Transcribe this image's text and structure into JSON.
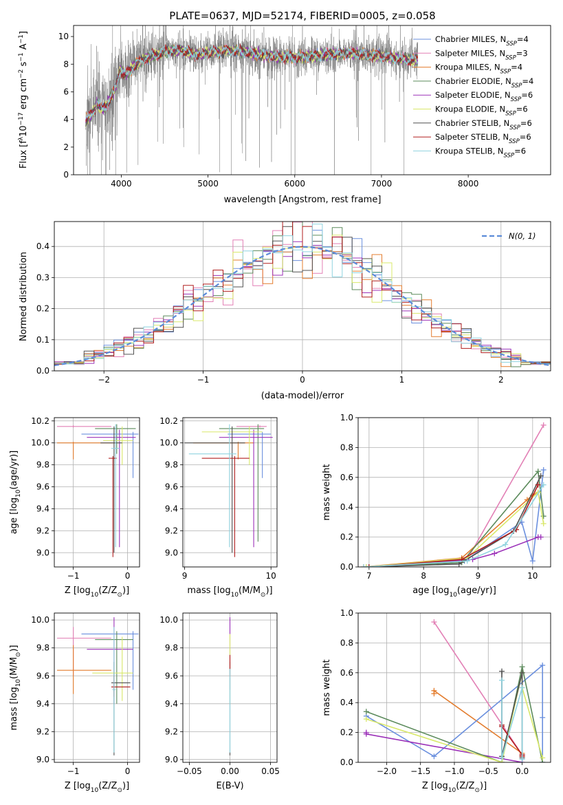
{
  "figure_title": "PLATE=0637, MJD=52174, FIBERID=0005, z=0.058",
  "colors": {
    "chabrier_miles": "#6a8fde",
    "salpeter_miles": "#e27fb5",
    "kroupa_miles": "#e37c2d",
    "chabrier_elodie": "#5b8a5b",
    "salpeter_elodie": "#9b30b8",
    "kroupa_elodie": "#d9e86a",
    "chabrier_stelib": "#505050",
    "salpeter_stelib": "#b01e1e",
    "kroupa_stelib": "#8fd3df",
    "data": "#808080",
    "normal": "#5b8bd9",
    "grid": "#b0b0b0"
  },
  "chart_data": [
    {
      "id": "spectrum",
      "type": "line",
      "title": "PLATE=0637, MJD=52174, FIBERID=0005, z=0.058",
      "xlabel": "wavelength [Angstrom, rest frame]",
      "ylabel_parts": [
        "Flux [f",
        "λ",
        "10",
        "−17",
        " erg cm",
        "−2",
        " s",
        "−1",
        " A",
        "−1",
        "]"
      ],
      "xlim": [
        3450,
        8950
      ],
      "ylim": [
        0,
        10.8
      ],
      "xticks": [
        4000,
        5000,
        6000,
        7000,
        8000
      ],
      "yticks": [
        0,
        2,
        4,
        6,
        8,
        10
      ],
      "grid": false,
      "legend_placement": "upper right",
      "legend": [
        {
          "label": "Chabrier MILES, N",
          "sub": "SSP",
          "tail": "=4",
          "color": "#6a8fde"
        },
        {
          "label": "Salpeter MILES, N",
          "sub": "SSP",
          "tail": "=3",
          "color": "#e27fb5"
        },
        {
          "label": "Kroupa MILES, N",
          "sub": "SSP",
          "tail": "=4",
          "color": "#e37c2d"
        },
        {
          "label": "Chabrier ELODIE, N",
          "sub": "SSP",
          "tail": "=4",
          "color": "#5b8a5b"
        },
        {
          "label": "Salpeter ELODIE, N",
          "sub": "SSP",
          "tail": "=6",
          "color": "#9b30b8"
        },
        {
          "label": "Kroupa ELODIE, N",
          "sub": "SSP",
          "tail": "=6",
          "color": "#d9e86a"
        },
        {
          "label": "Chabrier STELIB, N",
          "sub": "SSP",
          "tail": "=6",
          "color": "#505050"
        },
        {
          "label": "Salpeter STELIB, N",
          "sub": "SSP",
          "tail": "=6",
          "color": "#b01e1e"
        },
        {
          "label": "Kroupa STELIB, N",
          "sub": "SSP",
          "tail": "=6",
          "color": "#8fd3df"
        }
      ],
      "data_extent": [
        3590,
        7420
      ],
      "model_profile": {
        "x": [
          3590,
          3650,
          3700,
          3720,
          3780,
          3840,
          3880,
          3940,
          3980,
          4050,
          4150,
          4300,
          4500,
          4700,
          4850,
          5000,
          5200,
          5400,
          5600,
          5800,
          6000,
          6200,
          6400,
          6600,
          6800,
          7000,
          7200,
          7400
        ],
        "y": [
          3.9,
          4.3,
          4.8,
          5.2,
          4.7,
          5.1,
          5.6,
          6.4,
          7.6,
          7.2,
          7.9,
          8.5,
          8.9,
          9.0,
          8.7,
          8.8,
          9.0,
          8.9,
          8.7,
          8.5,
          8.5,
          8.6,
          8.7,
          8.8,
          8.7,
          8.6,
          8.4,
          8.3
        ]
      },
      "miles_range": [
        3590,
        7410
      ]
    },
    {
      "id": "residuals",
      "type": "line",
      "xlabel": "(data-model)/error",
      "ylabel": "Normed distribution",
      "xlim": [
        -2.5,
        2.5
      ],
      "ylim": [
        0,
        0.48
      ],
      "xticks": [
        -2,
        -1,
        0,
        1,
        2
      ],
      "xtick_labels": [
        "−2",
        "−1",
        "0",
        "1",
        "2"
      ],
      "yticks": [
        0.0,
        0.1,
        0.2,
        0.3,
        0.4
      ],
      "ytick_labels": [
        "0.0",
        "0.1",
        "0.2",
        "0.3",
        "0.4"
      ],
      "grid": true,
      "legend_placement": "upper right",
      "legend_label": "N(0, 1)",
      "bin_width": 0.1,
      "bin_start": -2.5
    },
    {
      "id": "age_vs_Z",
      "type": "scatter",
      "xlabel_parts": [
        "Z [log",
        "10",
        "(Z/Z",
        "⊙",
        ")]"
      ],
      "ylabel_parts": [
        "age  [log",
        "10",
        "(age/yr)]"
      ],
      "xlim": [
        -1.35,
        0.22
      ],
      "ylim": [
        8.87,
        10.23
      ],
      "xticks": [
        -1,
        0
      ],
      "xtick_labels": [
        "−1",
        "0"
      ],
      "yticks": [
        9.0,
        9.2,
        9.4,
        9.6,
        9.8,
        10.0,
        10.2
      ],
      "ytick_labels": [
        "9.0",
        "9.2",
        "9.4",
        "9.6",
        "9.8",
        "10.0",
        "10.2"
      ],
      "grid": true,
      "errorbars": [
        {
          "x": -1.0,
          "xlo": -1.3,
          "xhi": -0.3,
          "y": 10.15,
          "ylo": 10.14,
          "yhi": 10.16,
          "color": "#e27fb5"
        },
        {
          "x": -1.0,
          "xlo": -1.3,
          "xhi": -0.25,
          "y": 10.0,
          "ylo": 9.85,
          "yhi": 10.01,
          "color": "#e37c2d"
        },
        {
          "x": -0.2,
          "xlo": -0.6,
          "xhi": 0.15,
          "y": 10.13,
          "ylo": 9.9,
          "yhi": 10.17,
          "color": "#5b8a5b"
        },
        {
          "x": 0.1,
          "xlo": -0.85,
          "xhi": 0.2,
          "y": 10.08,
          "ylo": 9.68,
          "yhi": 10.1,
          "color": "#6a8fde"
        },
        {
          "x": -0.15,
          "xlo": -0.75,
          "xhi": 0.15,
          "y": 10.05,
          "ylo": 9.05,
          "yhi": 10.12,
          "color": "#9b30b8"
        },
        {
          "x": -0.1,
          "xlo": -0.45,
          "xhi": 0.1,
          "y": 10.02,
          "ylo": 9.8,
          "yhi": 10.15,
          "color": "#d9e86a"
        },
        {
          "x": -0.25,
          "xlo": -0.5,
          "xhi": -0.1,
          "y": 10.0,
          "ylo": 9.0,
          "yhi": 10.15,
          "color": "#505050"
        },
        {
          "x": -0.27,
          "xlo": -0.35,
          "xhi": -0.2,
          "y": 9.86,
          "ylo": 8.96,
          "yhi": 9.88,
          "color": "#b01e1e"
        },
        {
          "x": -0.22,
          "xlo": -0.3,
          "xhi": -0.15,
          "y": 9.95,
          "ylo": 9.05,
          "yhi": 10.17,
          "color": "#8fd3df"
        }
      ]
    },
    {
      "id": "age_vs_mass",
      "type": "scatter",
      "xlabel_parts": [
        "mass [log",
        "10",
        "(M/M",
        "⊙",
        ")]"
      ],
      "xlim": [
        8.98,
        10.07
      ],
      "ylim": [
        8.87,
        10.23
      ],
      "xticks": [
        9,
        10
      ],
      "xtick_labels": [
        "9",
        "10"
      ],
      "yticks": [
        9.0,
        9.2,
        9.4,
        9.6,
        9.8,
        10.0,
        10.2
      ],
      "ytick_labels": [
        "9.0",
        "9.2",
        "9.4",
        "9.6",
        "9.8",
        "10.0",
        "10.2"
      ],
      "grid": true,
      "errorbars": [
        {
          "x": 9.87,
          "xlo": 9.6,
          "xhi": 9.95,
          "y": 10.15,
          "ylo": 10.14,
          "yhi": 10.16,
          "color": "#e27fb5"
        },
        {
          "x": 9.62,
          "xlo": 9.1,
          "xhi": 9.8,
          "y": 10.0,
          "ylo": 9.85,
          "yhi": 10.01,
          "color": "#e37c2d"
        },
        {
          "x": 9.85,
          "xlo": 9.4,
          "xhi": 9.92,
          "y": 10.13,
          "ylo": 9.1,
          "yhi": 10.17,
          "color": "#5b8a5b"
        },
        {
          "x": 9.9,
          "xlo": 9.5,
          "xhi": 10.0,
          "y": 10.08,
          "ylo": 9.68,
          "yhi": 10.1,
          "color": "#6a8fde"
        },
        {
          "x": 9.8,
          "xlo": 9.4,
          "xhi": 10.02,
          "y": 10.05,
          "ylo": 9.05,
          "yhi": 10.12,
          "color": "#9b30b8"
        },
        {
          "x": 9.75,
          "xlo": 9.2,
          "xhi": 9.9,
          "y": 10.1,
          "ylo": 9.8,
          "yhi": 10.15,
          "color": "#d9e86a"
        },
        {
          "x": 9.55,
          "xlo": 9.0,
          "xhi": 9.7,
          "y": 10.0,
          "ylo": 9.0,
          "yhi": 10.15,
          "color": "#505050"
        },
        {
          "x": 9.58,
          "xlo": 9.2,
          "xhi": 9.75,
          "y": 9.86,
          "ylo": 8.96,
          "yhi": 9.88,
          "color": "#b01e1e"
        },
        {
          "x": 9.52,
          "xlo": 9.05,
          "xhi": 9.6,
          "y": 9.9,
          "ylo": 9.05,
          "yhi": 10.17,
          "color": "#8fd3df"
        }
      ]
    },
    {
      "id": "mass_weight_vs_age",
      "type": "line",
      "xlabel_parts": [
        "age  [log",
        "10",
        "(age/yr)]"
      ],
      "ylabel": "mass weight",
      "xlim": [
        6.8,
        10.33
      ],
      "ylim": [
        0,
        1.0
      ],
      "xticks": [
        7,
        8,
        9,
        10
      ],
      "xtick_labels": [
        "7",
        "8",
        "9",
        "10"
      ],
      "yticks": [
        0.0,
        0.2,
        0.4,
        0.6,
        0.8,
        1.0
      ],
      "ytick_labels": [
        "0.0",
        "0.2",
        "0.4",
        "0.6",
        "0.8",
        "1.0"
      ],
      "grid": true,
      "series": [
        {
          "color": "#e27fb5",
          "x": [
            7.0,
            8.8,
            10.2
          ],
          "y": [
            0.0,
            0.05,
            0.95
          ]
        },
        {
          "color": "#e37c2d",
          "x": [
            6.9,
            8.7,
            9.9,
            10.0,
            10.1
          ],
          "y": [
            0.0,
            0.06,
            0.45,
            0.48,
            0.5
          ]
        },
        {
          "color": "#6a8fde",
          "x": [
            6.95,
            8.75,
            9.8,
            10.0,
            10.2
          ],
          "y": [
            0.0,
            0.04,
            0.3,
            0.04,
            0.65
          ]
        },
        {
          "color": "#9b30b8",
          "x": [
            7.0,
            8.9,
            9.3,
            10.1,
            10.15
          ],
          "y": [
            0.0,
            0.05,
            0.09,
            0.2,
            0.2
          ]
        },
        {
          "color": "#5b8a5b",
          "x": [
            7.0,
            8.7,
            10.1,
            10.2
          ],
          "y": [
            0.0,
            0.03,
            0.64,
            0.34
          ]
        },
        {
          "color": "#d9e86a",
          "x": [
            6.95,
            8.8,
            10.1,
            10.2
          ],
          "y": [
            0.0,
            0.06,
            0.5,
            0.29
          ]
        },
        {
          "color": "#505050",
          "x": [
            7.0,
            8.65,
            9.65,
            10.15
          ],
          "y": [
            0.0,
            0.02,
            0.24,
            0.61
          ]
        },
        {
          "color": "#b01e1e",
          "x": [
            7.0,
            8.7,
            9.7,
            10.1
          ],
          "y": [
            0.0,
            0.05,
            0.25,
            0.55
          ]
        },
        {
          "color": "#8fd3df",
          "x": [
            6.9,
            8.8,
            9.5,
            10.2
          ],
          "y": [
            0.0,
            0.04,
            0.15,
            0.55
          ]
        }
      ]
    },
    {
      "id": "mass_vs_Z",
      "type": "scatter",
      "xlabel_parts": [
        "Z [log",
        "10",
        "(Z/Z",
        "⊙",
        ")]"
      ],
      "ylabel_parts": [
        "mass [log",
        "10",
        "(M/M",
        "⊙",
        ")]"
      ],
      "xlim": [
        -1.35,
        0.22
      ],
      "ylim": [
        8.98,
        10.05
      ],
      "xticks": [
        -1,
        0
      ],
      "xtick_labels": [
        "−1",
        "0"
      ],
      "yticks": [
        9.0,
        9.2,
        9.4,
        9.6,
        9.8,
        10.0
      ],
      "ytick_labels": [
        "9.0",
        "9.2",
        "9.4",
        "9.6",
        "9.8",
        "10.0"
      ],
      "grid": true,
      "errorbars": [
        {
          "x": 0.1,
          "xlo": -0.85,
          "xhi": 0.2,
          "y": 9.9,
          "ylo": 9.5,
          "yhi": 9.92,
          "color": "#6a8fde"
        },
        {
          "x": -1.0,
          "xlo": -1.3,
          "xhi": -0.3,
          "y": 9.87,
          "ylo": 9.6,
          "yhi": 9.95,
          "color": "#e27fb5"
        },
        {
          "x": -1.0,
          "xlo": -1.3,
          "xhi": -0.3,
          "y": 9.64,
          "ylo": 9.47,
          "yhi": 9.82,
          "color": "#e37c2d"
        },
        {
          "x": -0.2,
          "xlo": -0.6,
          "xhi": 0.1,
          "y": 9.86,
          "ylo": 9.4,
          "yhi": 9.92,
          "color": "#5b8a5b"
        },
        {
          "x": -0.25,
          "xlo": -0.75,
          "xhi": 0.1,
          "y": 9.79,
          "ylo": 9.4,
          "yhi": 10.02,
          "color": "#9b30b8"
        },
        {
          "x": -0.1,
          "xlo": -0.65,
          "xhi": 0.1,
          "y": 9.62,
          "ylo": 9.42,
          "yhi": 9.88,
          "color": "#d9e86a"
        },
        {
          "x": -0.25,
          "xlo": -0.3,
          "xhi": 0.05,
          "y": 9.55,
          "ylo": 9.03,
          "yhi": 9.7,
          "color": "#505050"
        },
        {
          "x": -0.25,
          "xlo": -0.3,
          "xhi": 0.05,
          "y": 9.52,
          "ylo": 9.45,
          "yhi": 9.6,
          "color": "#b01e1e"
        },
        {
          "x": -0.25,
          "xlo": -0.28,
          "xhi": -0.22,
          "y": 9.5,
          "ylo": 9.05,
          "yhi": 9.95,
          "color": "#8fd3df"
        }
      ]
    },
    {
      "id": "mass_vs_ebv",
      "type": "scatter",
      "xlabel": "E(B-V)",
      "xlim": [
        -0.058,
        0.058
      ],
      "ylim": [
        8.98,
        10.05
      ],
      "xticks": [
        -0.05,
        0.0,
        0.05
      ],
      "xtick_labels": [
        "−0.05",
        "0.00",
        "0.05"
      ],
      "yticks": [
        9.0,
        9.2,
        9.4,
        9.6,
        9.8,
        10.0
      ],
      "ytick_labels": [
        "9.0",
        "9.2",
        "9.4",
        "9.6",
        "9.8",
        "10.0"
      ],
      "grid": true,
      "errorbars": [
        {
          "x": 0.0,
          "xlo": 0.0,
          "xhi": 0.0,
          "y": 9.7,
          "ylo": 9.5,
          "yhi": 10.02,
          "color": "#9b30b8"
        },
        {
          "x": 0.0,
          "xlo": 0.0,
          "xhi": 0.0,
          "y": 9.65,
          "ylo": 9.4,
          "yhi": 9.9,
          "color": "#d9e86a"
        },
        {
          "x": 0.0,
          "xlo": 0.0,
          "xhi": 0.0,
          "y": 9.55,
          "ylo": 9.03,
          "yhi": 9.7,
          "color": "#505050"
        },
        {
          "x": 0.0,
          "xlo": 0.0,
          "xhi": 0.0,
          "y": 9.65,
          "ylo": 9.6,
          "yhi": 9.75,
          "color": "#b01e1e"
        },
        {
          "x": 0.0,
          "xlo": 0.0,
          "xhi": 0.0,
          "y": 9.5,
          "ylo": 9.05,
          "yhi": 9.65,
          "color": "#8fd3df"
        }
      ]
    },
    {
      "id": "mass_weight_vs_Z",
      "type": "line",
      "xlabel_parts": [
        "Z [log",
        "10",
        "(Z/Z",
        "⊙",
        ")]"
      ],
      "ylabel": "mass weight",
      "xlim": [
        -2.42,
        0.42
      ],
      "ylim": [
        0,
        1.0
      ],
      "xticks": [
        -2.0,
        -1.5,
        -1.0,
        -0.5,
        0.0
      ],
      "xtick_labels": [
        "−2.0",
        "−1.5",
        "−1.0",
        "−0.5",
        "0.0"
      ],
      "yticks": [
        0.0,
        0.2,
        0.4,
        0.6,
        0.8,
        1.0
      ],
      "ytick_labels": [
        "0.0",
        "0.2",
        "0.4",
        "0.6",
        "0.8",
        "1.0"
      ],
      "grid": true,
      "series": [
        {
          "color": "#e27fb5",
          "x": [
            -1.3,
            0.0
          ],
          "y": [
            0.94,
            0.05
          ]
        },
        {
          "color": "#e37c2d",
          "x": [
            -1.3,
            -1.3,
            0.0,
            0.0
          ],
          "y": [
            0.46,
            0.48,
            0.06,
            0.04
          ]
        },
        {
          "color": "#6a8fde",
          "x": [
            -2.3,
            -1.3,
            0.3,
            0.3,
            0.3
          ],
          "y": [
            0.31,
            0.04,
            0.65,
            0.3,
            0.0
          ]
        },
        {
          "color": "#9b30b8",
          "x": [
            -2.3,
            -2.3,
            0.0,
            0.0
          ],
          "y": [
            0.2,
            0.19,
            0.0,
            0.05
          ]
        },
        {
          "color": "#5b8a5b",
          "x": [
            -2.3,
            -0.3,
            0.0,
            0.3
          ],
          "y": [
            0.34,
            0.0,
            0.64,
            0.0
          ]
        },
        {
          "color": "#d9e86a",
          "x": [
            -2.3,
            -0.3,
            0.0,
            0.0,
            0.3
          ],
          "y": [
            0.29,
            0.0,
            0.6,
            0.5,
            0.03
          ]
        },
        {
          "color": "#505050",
          "x": [
            -0.3,
            -0.3,
            0.0,
            0.0
          ],
          "y": [
            0.61,
            0.04,
            0.6,
            0.03
          ]
        },
        {
          "color": "#b01e1e",
          "x": [
            -0.3,
            -0.3,
            0.0,
            0.0
          ],
          "y": [
            0.25,
            0.24,
            0.05,
            0.04
          ]
        },
        {
          "color": "#8fd3df",
          "x": [
            -0.3,
            -0.3,
            0.0,
            0.0
          ],
          "y": [
            0.55,
            0.03,
            0.5,
            0.02
          ]
        }
      ]
    }
  ]
}
